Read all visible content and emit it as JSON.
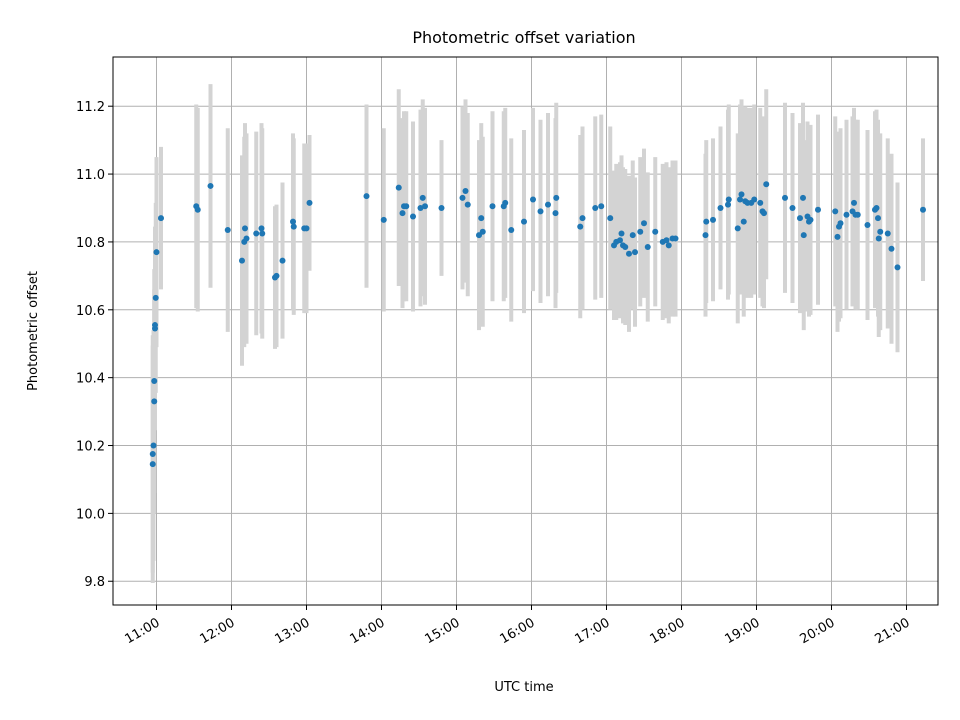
{
  "chart_data": {
    "type": "scatter",
    "title": "Photometric offset variation",
    "xlabel": "UTC time",
    "ylabel": "Photometric offset",
    "x_unit": "hours UTC",
    "xlim": [
      10.42,
      21.42
    ],
    "ylim": [
      9.73,
      11.345
    ],
    "xticks": [
      {
        "value": 11,
        "label": "11:00"
      },
      {
        "value": 12,
        "label": "12:00"
      },
      {
        "value": 13,
        "label": "13:00"
      },
      {
        "value": 14,
        "label": "14:00"
      },
      {
        "value": 15,
        "label": "15:00"
      },
      {
        "value": 16,
        "label": "16:00"
      },
      {
        "value": 17,
        "label": "17:00"
      },
      {
        "value": 18,
        "label": "18:00"
      },
      {
        "value": 19,
        "label": "19:00"
      },
      {
        "value": 20,
        "label": "20:00"
      },
      {
        "value": 21,
        "label": "21:00"
      }
    ],
    "yticks": [
      {
        "value": 9.8,
        "label": "9.8"
      },
      {
        "value": 10.0,
        "label": "10.0"
      },
      {
        "value": 10.2,
        "label": "10.2"
      },
      {
        "value": 10.4,
        "label": "10.4"
      },
      {
        "value": 10.6,
        "label": "10.6"
      },
      {
        "value": 10.8,
        "label": "10.8"
      },
      {
        "value": 11.0,
        "label": "11.0"
      },
      {
        "value": 11.2,
        "label": "11.2"
      }
    ],
    "grid": true,
    "colors": {
      "point": "#1f77b4",
      "errorbar": "#d3d3d3",
      "grid": "#b0b0b0",
      "axis": "#000000"
    },
    "points": [
      [
        10.95,
        10.145,
        0.35
      ],
      [
        10.95,
        10.175,
        0.35
      ],
      [
        10.96,
        10.2,
        0.34
      ],
      [
        10.97,
        10.33,
        0.33
      ],
      [
        10.97,
        10.39,
        0.33
      ],
      [
        10.98,
        10.545,
        0.3
      ],
      [
        10.98,
        10.555,
        0.28
      ],
      [
        10.99,
        10.635,
        0.28
      ],
      [
        11.0,
        10.77,
        0.28
      ],
      [
        11.06,
        10.87,
        0.21
      ],
      [
        11.53,
        10.905,
        0.3
      ],
      [
        11.55,
        10.895,
        0.3
      ],
      [
        11.72,
        10.965,
        0.3
      ],
      [
        11.95,
        10.835,
        0.3
      ],
      [
        12.14,
        10.745,
        0.31
      ],
      [
        12.17,
        10.8,
        0.31
      ],
      [
        12.18,
        10.84,
        0.31
      ],
      [
        12.2,
        10.81,
        0.31
      ],
      [
        12.33,
        10.825,
        0.3
      ],
      [
        12.4,
        10.84,
        0.31
      ],
      [
        12.41,
        10.825,
        0.31
      ],
      [
        12.58,
        10.695,
        0.21
      ],
      [
        12.6,
        10.7,
        0.21
      ],
      [
        12.68,
        10.745,
        0.23
      ],
      [
        12.82,
        10.86,
        0.26
      ],
      [
        12.83,
        10.845,
        0.26
      ],
      [
        12.97,
        10.84,
        0.25
      ],
      [
        13.0,
        10.84,
        0.25
      ],
      [
        13.04,
        10.915,
        0.2
      ],
      [
        13.8,
        10.935,
        0.27
      ],
      [
        14.03,
        10.865,
        0.27
      ],
      [
        14.23,
        10.96,
        0.29
      ],
      [
        14.28,
        10.885,
        0.28
      ],
      [
        14.3,
        10.905,
        0.28
      ],
      [
        14.33,
        10.905,
        0.28
      ],
      [
        14.42,
        10.875,
        0.28
      ],
      [
        14.52,
        10.9,
        0.29
      ],
      [
        14.55,
        10.93,
        0.29
      ],
      [
        14.58,
        10.905,
        0.29
      ],
      [
        14.8,
        10.9,
        0.2
      ],
      [
        15.08,
        10.93,
        0.27
      ],
      [
        15.12,
        10.95,
        0.27
      ],
      [
        15.15,
        10.91,
        0.27
      ],
      [
        15.3,
        10.82,
        0.28
      ],
      [
        15.33,
        10.87,
        0.28
      ],
      [
        15.35,
        10.83,
        0.28
      ],
      [
        15.48,
        10.905,
        0.28
      ],
      [
        15.63,
        10.905,
        0.28
      ],
      [
        15.65,
        10.915,
        0.28
      ],
      [
        15.73,
        10.835,
        0.27
      ],
      [
        15.9,
        10.86,
        0.27
      ],
      [
        16.02,
        10.925,
        0.27
      ],
      [
        16.12,
        10.89,
        0.27
      ],
      [
        16.22,
        10.91,
        0.27
      ],
      [
        16.32,
        10.885,
        0.28
      ],
      [
        16.33,
        10.93,
        0.28
      ],
      [
        16.65,
        10.845,
        0.27
      ],
      [
        16.68,
        10.87,
        0.27
      ],
      [
        16.85,
        10.9,
        0.27
      ],
      [
        16.93,
        10.905,
        0.27
      ],
      [
        17.05,
        10.87,
        0.27
      ],
      [
        17.1,
        10.79,
        0.22
      ],
      [
        17.13,
        10.8,
        0.23
      ],
      [
        17.18,
        10.805,
        0.23
      ],
      [
        17.2,
        10.825,
        0.23
      ],
      [
        17.22,
        10.79,
        0.23
      ],
      [
        17.25,
        10.785,
        0.23
      ],
      [
        17.3,
        10.765,
        0.23
      ],
      [
        17.35,
        10.82,
        0.22
      ],
      [
        17.38,
        10.77,
        0.22
      ],
      [
        17.45,
        10.83,
        0.22
      ],
      [
        17.5,
        10.855,
        0.22
      ],
      [
        17.55,
        10.785,
        0.22
      ],
      [
        17.65,
        10.83,
        0.22
      ],
      [
        17.75,
        10.8,
        0.23
      ],
      [
        17.8,
        10.805,
        0.23
      ],
      [
        17.83,
        10.79,
        0.23
      ],
      [
        17.88,
        10.81,
        0.23
      ],
      [
        17.92,
        10.81,
        0.23
      ],
      [
        18.32,
        10.82,
        0.24
      ],
      [
        18.33,
        10.86,
        0.24
      ],
      [
        18.42,
        10.865,
        0.24
      ],
      [
        18.52,
        10.9,
        0.24
      ],
      [
        18.62,
        10.91,
        0.28
      ],
      [
        18.63,
        10.925,
        0.28
      ],
      [
        18.75,
        10.84,
        0.28
      ],
      [
        18.78,
        10.925,
        0.28
      ],
      [
        18.8,
        10.94,
        0.28
      ],
      [
        18.83,
        10.86,
        0.28
      ],
      [
        18.85,
        10.92,
        0.28
      ],
      [
        18.88,
        10.915,
        0.28
      ],
      [
        18.93,
        10.915,
        0.28
      ],
      [
        18.97,
        10.925,
        0.28
      ],
      [
        19.05,
        10.915,
        0.28
      ],
      [
        19.08,
        10.89,
        0.28
      ],
      [
        19.1,
        10.885,
        0.28
      ],
      [
        19.13,
        10.97,
        0.28
      ],
      [
        19.38,
        10.93,
        0.28
      ],
      [
        19.48,
        10.9,
        0.28
      ],
      [
        19.58,
        10.87,
        0.28
      ],
      [
        19.62,
        10.93,
        0.28
      ],
      [
        19.63,
        10.82,
        0.28
      ],
      [
        19.68,
        10.875,
        0.28
      ],
      [
        19.7,
        10.86,
        0.28
      ],
      [
        19.72,
        10.865,
        0.28
      ],
      [
        19.82,
        10.895,
        0.28
      ],
      [
        20.05,
        10.89,
        0.28
      ],
      [
        20.08,
        10.815,
        0.28
      ],
      [
        20.1,
        10.845,
        0.28
      ],
      [
        20.12,
        10.855,
        0.28
      ],
      [
        20.2,
        10.88,
        0.28
      ],
      [
        20.28,
        10.89,
        0.28
      ],
      [
        20.3,
        10.915,
        0.28
      ],
      [
        20.32,
        10.88,
        0.28
      ],
      [
        20.35,
        10.88,
        0.28
      ],
      [
        20.48,
        10.85,
        0.28
      ],
      [
        20.58,
        10.895,
        0.29
      ],
      [
        20.6,
        10.9,
        0.29
      ],
      [
        20.62,
        10.87,
        0.29
      ],
      [
        20.63,
        10.81,
        0.29
      ],
      [
        20.65,
        10.83,
        0.29
      ],
      [
        20.75,
        10.825,
        0.28
      ],
      [
        20.8,
        10.78,
        0.28
      ],
      [
        20.88,
        10.725,
        0.25
      ],
      [
        21.22,
        10.895,
        0.21
      ]
    ]
  }
}
